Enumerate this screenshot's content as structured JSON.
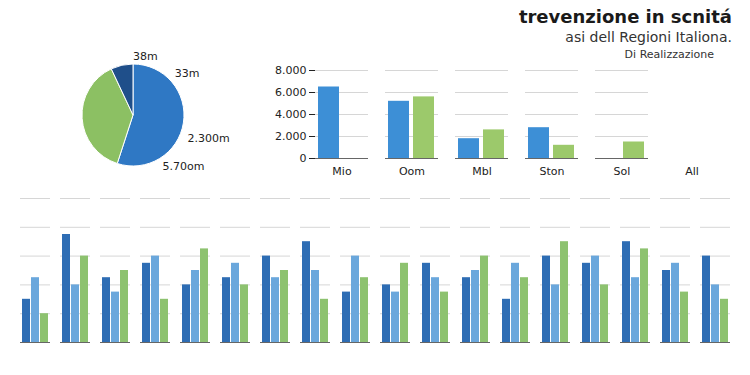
{
  "header": {
    "title": "trevenzione in scnitá",
    "subtitle": "asi dell Regioni Italiona."
  },
  "chart_data": [
    {
      "type": "pie",
      "values": [
        55,
        38,
        7
      ],
      "colors": [
        "#2f78c4",
        "#8cc063",
        "#1f4f8a"
      ],
      "annotations": [
        "38m",
        "33m",
        "2.300m",
        "5.70om"
      ]
    },
    {
      "type": "bar",
      "title": "Di Realizzazione",
      "categories": [
        "Mio",
        "Oom",
        "Mbl",
        "Ston",
        "Sol",
        "All"
      ],
      "series": [
        {
          "color": "#3d8fd6",
          "values": [
            6500,
            5200,
            1800,
            2800,
            null,
            null
          ]
        },
        {
          "color": "#9cc96b",
          "values": [
            null,
            5600,
            2600,
            1200,
            1500,
            null
          ]
        }
      ],
      "ylim": [
        0,
        8000
      ],
      "yticks": [
        0,
        {
          "value": 2000,
          "label": "2.000"
        },
        {
          "value": 4000,
          "label": "4.000"
        },
        {
          "value": 6000,
          "label": "6.000"
        },
        {
          "value": 8000,
          "label": "8.000"
        }
      ],
      "grid": true
    },
    {
      "type": "bar",
      "categories": [
        null,
        null,
        null,
        null,
        null,
        null,
        null,
        null,
        null,
        null,
        null,
        null,
        null,
        null,
        null,
        null,
        null,
        null
      ],
      "series": [
        {
          "color": "#2e6db4",
          "values": [
            30,
            75,
            45,
            55,
            40,
            45,
            60,
            70,
            35,
            40,
            55,
            45,
            30,
            60,
            55,
            70,
            50,
            60
          ]
        },
        {
          "color": "#6aa7dc",
          "values": [
            45,
            40,
            35,
            60,
            50,
            55,
            45,
            50,
            60,
            35,
            45,
            50,
            55,
            40,
            60,
            45,
            55,
            40
          ]
        },
        {
          "color": "#8dc26f",
          "values": [
            20,
            60,
            50,
            30,
            65,
            40,
            50,
            30,
            45,
            55,
            35,
            60,
            45,
            70,
            40,
            65,
            35,
            30
          ]
        }
      ],
      "ylim": [
        0,
        100
      ],
      "yticks": [
        0,
        20,
        40,
        60,
        80,
        100
      ],
      "grid": true,
      "tick_labels": false
    }
  ]
}
